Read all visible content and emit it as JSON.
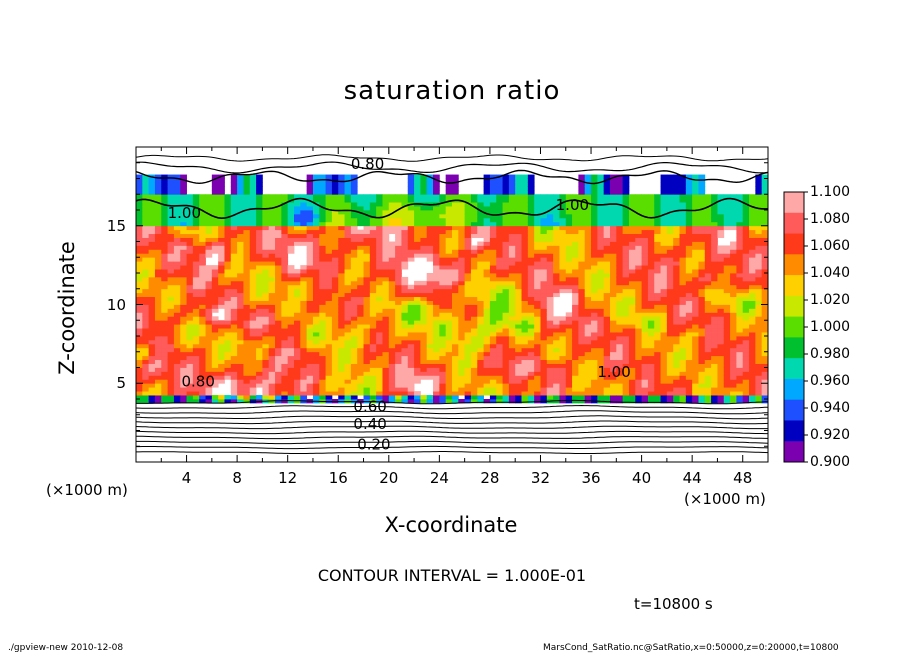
{
  "chart_data": {
    "type": "heatmap",
    "title": "saturation ratio",
    "xlabel": "X-coordinate",
    "ylabel": "Z-coordinate",
    "x_unit": "(×1000 m)",
    "x_ticks": [
      "4",
      "8",
      "12",
      "16",
      "20",
      "24",
      "28",
      "32",
      "36",
      "40",
      "44",
      "48"
    ],
    "y_ticks": [
      "5",
      "10",
      "15"
    ],
    "xlim": [
      0,
      50
    ],
    "ylim": [
      0,
      20
    ],
    "contour_labels": [
      "0.80",
      "1.00",
      "1.00",
      "1.00",
      "0.80",
      "0.60",
      "0.40",
      "0.20"
    ],
    "colorbar": {
      "labels": [
        "1.100",
        "1.080",
        "1.060",
        "1.040",
        "1.020",
        "1.000",
        "0.980",
        "0.960",
        "0.940",
        "0.920",
        "0.900"
      ],
      "colors": [
        "#ffa8a8",
        "#ff5b5b",
        "#ff3a1a",
        "#ff8c00",
        "#ffd000",
        "#c8e800",
        "#5ade00",
        "#00c030",
        "#00d8b0",
        "#00a8ff",
        "#1e50ff",
        "#0000c0",
        "#7a00b0"
      ]
    },
    "contour_interval": "CONTOUR INTERVAL = 1.000E-01",
    "time": "t=10800 s"
  },
  "footer": {
    "left": "./gpview-new 2010-12-08",
    "right": "MarsCond_SatRatio.nc@SatRatio,x=0:50000,z=0:20000,t=10800"
  }
}
